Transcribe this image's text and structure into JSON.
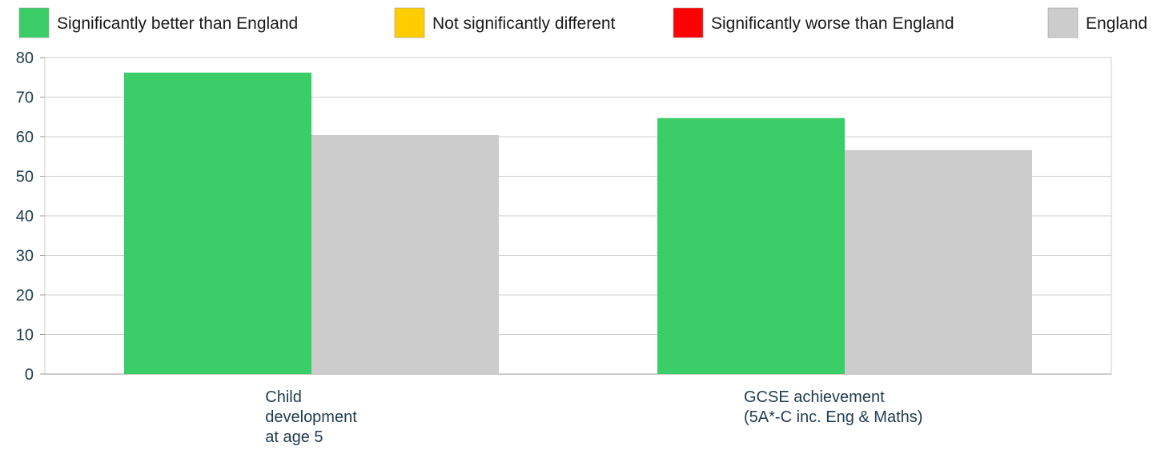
{
  "legend": [
    {
      "label": "Significantly better than England",
      "color": "#3acd68"
    },
    {
      "label": "Not significantly different",
      "color": "#ffcc00"
    },
    {
      "label": "Significantly worse than England",
      "color": "#ff0000"
    },
    {
      "label": "England",
      "color": "#cccccc"
    }
  ],
  "chart_data": {
    "type": "bar",
    "categories": [
      [
        "Child",
        "development",
        "at age 5"
      ],
      [
        "GCSE achievement",
        "(5A*-C inc. Eng & Maths)"
      ]
    ],
    "series": [
      {
        "name": "Significantly better than England",
        "values": [
          76.2,
          64.7
        ],
        "color": "#3acd68"
      },
      {
        "name": "England",
        "values": [
          60.4,
          56.6
        ],
        "color": "#cccccc"
      }
    ],
    "ylim": [
      0,
      80
    ],
    "yticks": [
      0,
      10,
      20,
      30,
      40,
      50,
      60,
      70,
      80
    ],
    "grid": true,
    "legend_position": "top"
  }
}
